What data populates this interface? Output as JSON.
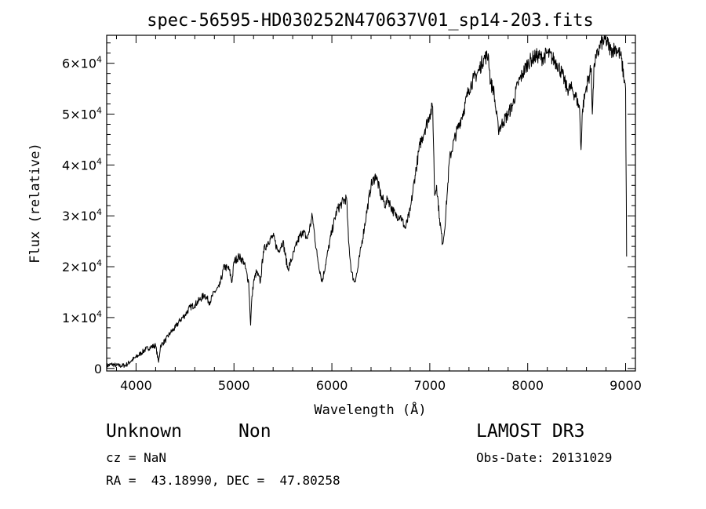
{
  "chart_data": {
    "type": "line",
    "title": "spec-56595-HD030252N470637V01_sp14-203.fits",
    "xlabel": "Wavelength (Å)",
    "ylabel": "Flux (relative)",
    "xlim": [
      3700,
      9100
    ],
    "ylim": [
      -500,
      65500
    ],
    "xticks": [
      {
        "value": 4000,
        "label": "4000"
      },
      {
        "value": 5000,
        "label": "5000"
      },
      {
        "value": 6000,
        "label": "6000"
      },
      {
        "value": 7000,
        "label": "7000"
      },
      {
        "value": 8000,
        "label": "8000"
      },
      {
        "value": 9000,
        "label": "9000"
      }
    ],
    "yticks": [
      {
        "value": 0,
        "mant": "0",
        "exp": ""
      },
      {
        "value": 10000,
        "mant": "1×10",
        "exp": "4"
      },
      {
        "value": 20000,
        "mant": "2×10",
        "exp": "4"
      },
      {
        "value": 30000,
        "mant": "3×10",
        "exp": "4"
      },
      {
        "value": 40000,
        "mant": "4×10",
        "exp": "4"
      },
      {
        "value": 50000,
        "mant": "5×10",
        "exp": "4"
      },
      {
        "value": 60000,
        "mant": "6×10",
        "exp": "4"
      }
    ],
    "series": [
      {
        "color": "#000000",
        "x": [
          3700,
          3750,
          3800,
          3850,
          3900,
          3950,
          4000,
          4050,
          4100,
          4150,
          4200,
          4230,
          4250,
          4300,
          4350,
          4400,
          4450,
          4500,
          4550,
          4600,
          4650,
          4700,
          4750,
          4800,
          4850,
          4900,
          4950,
          4980,
          5000,
          5050,
          5100,
          5150,
          5170,
          5180,
          5200,
          5230,
          5270,
          5300,
          5350,
          5400,
          5450,
          5500,
          5550,
          5600,
          5650,
          5700,
          5750,
          5800,
          5850,
          5880,
          5900,
          5950,
          6000,
          6050,
          6100,
          6150,
          6170,
          6200,
          6230,
          6260,
          6300,
          6350,
          6400,
          6450,
          6500,
          6550,
          6570,
          6600,
          6650,
          6700,
          6750,
          6800,
          6850,
          6900,
          6950,
          7000,
          7030,
          7050,
          7070,
          7100,
          7130,
          7150,
          7180,
          7200,
          7250,
          7300,
          7350,
          7400,
          7450,
          7500,
          7550,
          7600,
          7620,
          7650,
          7680,
          7700,
          7750,
          7800,
          7850,
          7900,
          7950,
          8000,
          8050,
          8100,
          8150,
          8200,
          8250,
          8300,
          8350,
          8400,
          8450,
          8500,
          8530,
          8545,
          8560,
          8600,
          8650,
          8660,
          8680,
          8700,
          8750,
          8800,
          8850,
          8900,
          8950,
          9000,
          9010
        ],
        "y": [
          500,
          800,
          600,
          500,
          700,
          1500,
          2200,
          3000,
          3800,
          4200,
          4500,
          1200,
          4500,
          5500,
          7000,
          8000,
          9500,
          10500,
          12000,
          12500,
          13500,
          14500,
          13000,
          15000,
          16000,
          20000,
          19500,
          17000,
          21000,
          22000,
          21000,
          17000,
          8500,
          13000,
          17000,
          19000,
          17000,
          23000,
          25000,
          26000,
          23000,
          25000,
          19500,
          22000,
          25000,
          27000,
          25500,
          30000,
          22000,
          19000,
          17000,
          22000,
          27000,
          31000,
          32500,
          33500,
          25000,
          19000,
          17000,
          19000,
          24000,
          30000,
          36000,
          38000,
          34000,
          32000,
          33500,
          32000,
          30000,
          30000,
          27500,
          31000,
          38000,
          44000,
          47000,
          50000,
          51500,
          34000,
          36000,
          29500,
          24500,
          27000,
          35000,
          41000,
          45000,
          48000,
          51000,
          55000,
          57000,
          58500,
          61000,
          61500,
          56000,
          55000,
          50000,
          47000,
          48500,
          50000,
          52000,
          56000,
          58000,
          60000,
          61000,
          61500,
          61000,
          62000,
          61000,
          60000,
          58000,
          55000,
          55000,
          53000,
          51000,
          43000,
          51000,
          55500,
          59000,
          50000,
          60000,
          61000,
          64000,
          64500,
          62500,
          63000,
          61500,
          55000,
          22000
        ]
      }
    ]
  },
  "info": {
    "class": "Unknown",
    "subclass": "Non",
    "cz": "cz = NaN",
    "coords": "RA =  43.18990, DEC =  47.80258",
    "survey": "LAMOST DR3",
    "obsdate": "Obs-Date: 20131029"
  }
}
